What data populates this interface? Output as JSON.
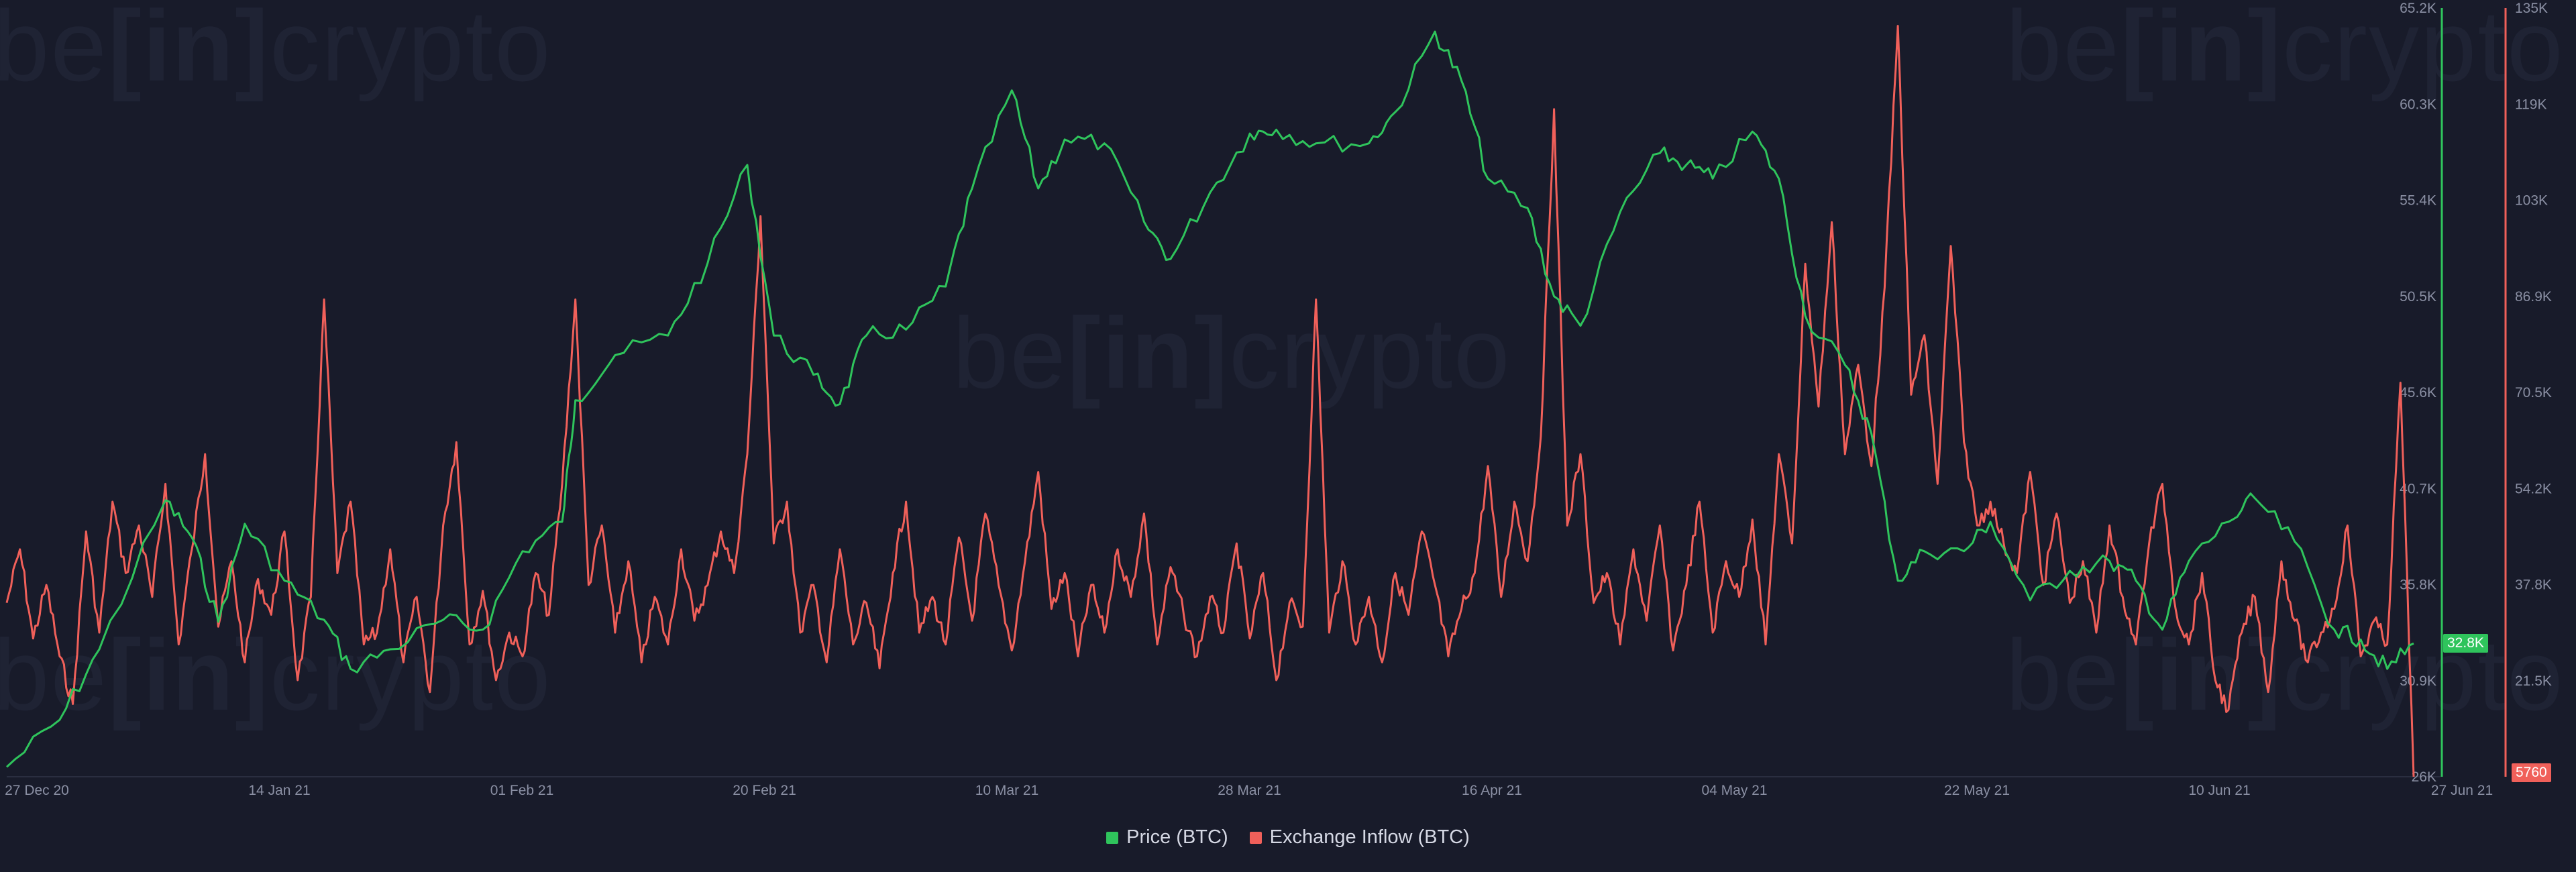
{
  "watermark": {
    "pre": "be",
    "mid": "[in]",
    "post": "crypto"
  },
  "colors": {
    "price": "#2fc45c",
    "inflow": "#f0605a",
    "grid": "#2a2e40",
    "axis_text": "#8a8fa3"
  },
  "legend": {
    "price_label": "Price (BTC)",
    "inflow_label": "Exchange Inflow (BTC)"
  },
  "badges": {
    "price_last": "32.8K",
    "inflow_last": "5760"
  },
  "chart_data": {
    "type": "line",
    "x_ticks": [
      "27 Dec 20",
      "14 Jan 21",
      "01 Feb 21",
      "20 Feb 21",
      "10 Mar 21",
      "28 Mar 21",
      "16 Apr 21",
      "04 May 21",
      "22 May 21",
      "10 Jun 21",
      "27 Jun 21"
    ],
    "x_range": [
      "2020-12-27",
      "2021-06-27"
    ],
    "y_left": {
      "ticks": [
        "26K",
        "30.9K",
        "35.8K",
        "40.7K",
        "45.6K",
        "50.5K",
        "55.4K",
        "60.3K",
        "65.2K"
      ],
      "range": [
        26000,
        65200
      ]
    },
    "y_right": {
      "ticks": [
        "5760",
        "21.5K",
        "37.8K",
        "54.2K",
        "70.5K",
        "86.9K",
        "103K",
        "119K",
        "135K"
      ],
      "range": [
        5760,
        135000
      ]
    },
    "grid": false,
    "legend_position": "bottom-center",
    "series": [
      {
        "name": "Price (BTC)",
        "axis": "left",
        "points": [
          [
            "2020-12-27",
            26500
          ],
          [
            "2020-12-31",
            28900
          ],
          [
            "2021-01-03",
            32500
          ],
          [
            "2021-01-08",
            40100
          ],
          [
            "2021-01-10",
            38200
          ],
          [
            "2021-01-12",
            33900
          ],
          [
            "2021-01-14",
            38900
          ],
          [
            "2021-01-17",
            36000
          ],
          [
            "2021-01-20",
            34000
          ],
          [
            "2021-01-22",
            31500
          ],
          [
            "2021-01-25",
            32500
          ],
          [
            "2021-01-29",
            34000
          ],
          [
            "2021-02-01",
            33500
          ],
          [
            "2021-02-04",
            37500
          ],
          [
            "2021-02-07",
            39000
          ],
          [
            "2021-02-08",
            45200
          ],
          [
            "2021-02-11",
            47500
          ],
          [
            "2021-02-15",
            48500
          ],
          [
            "2021-02-18",
            52200
          ],
          [
            "2021-02-21",
            57200
          ],
          [
            "2021-02-23",
            48500
          ],
          [
            "2021-02-26",
            46500
          ],
          [
            "2021-02-28",
            45000
          ],
          [
            "2021-03-02",
            48500
          ],
          [
            "2021-03-05",
            48800
          ],
          [
            "2021-03-08",
            51000
          ],
          [
            "2021-03-10",
            56000
          ],
          [
            "2021-03-13",
            61000
          ],
          [
            "2021-03-15",
            56000
          ],
          [
            "2021-03-17",
            58500
          ],
          [
            "2021-03-20",
            58300
          ],
          [
            "2021-03-23",
            54300
          ],
          [
            "2021-03-25",
            52400
          ],
          [
            "2021-03-28",
            55800
          ],
          [
            "2021-03-31",
            58800
          ],
          [
            "2021-04-02",
            59000
          ],
          [
            "2021-04-05",
            58300
          ],
          [
            "2021-04-09",
            58300
          ],
          [
            "2021-04-11",
            59900
          ],
          [
            "2021-04-14",
            64000
          ],
          [
            "2021-04-16",
            61500
          ],
          [
            "2021-04-18",
            56500
          ],
          [
            "2021-04-21",
            55000
          ],
          [
            "2021-04-23",
            50500
          ],
          [
            "2021-04-25",
            49000
          ],
          [
            "2021-04-28",
            54800
          ],
          [
            "2021-05-01",
            57800
          ],
          [
            "2021-05-03",
            57200
          ],
          [
            "2021-05-05",
            56500
          ],
          [
            "2021-05-08",
            58900
          ],
          [
            "2021-05-10",
            56500
          ],
          [
            "2021-05-12",
            49500
          ],
          [
            "2021-05-15",
            47000
          ],
          [
            "2021-05-17",
            43500
          ],
          [
            "2021-05-19",
            36000
          ],
          [
            "2021-05-21",
            37500
          ],
          [
            "2021-05-24",
            37500
          ],
          [
            "2021-05-26",
            39000
          ],
          [
            "2021-05-29",
            35000
          ],
          [
            "2021-06-01",
            36500
          ],
          [
            "2021-06-04",
            37000
          ],
          [
            "2021-06-06",
            36000
          ],
          [
            "2021-06-08",
            33500
          ],
          [
            "2021-06-10",
            37000
          ],
          [
            "2021-06-13",
            39000
          ],
          [
            "2021-06-15",
            40200
          ],
          [
            "2021-06-18",
            38000
          ],
          [
            "2021-06-21",
            33500
          ],
          [
            "2021-06-23",
            33000
          ],
          [
            "2021-06-25",
            31500
          ],
          [
            "2021-06-27",
            32800
          ]
        ]
      },
      {
        "name": "Exchange Inflow (BTC)",
        "axis": "right",
        "points": [
          [
            "2020-12-27",
            35000
          ],
          [
            "2020-12-28",
            44000
          ],
          [
            "2020-12-29",
            29000
          ],
          [
            "2020-12-30",
            38000
          ],
          [
            "2020-12-31",
            26000
          ],
          [
            "2021-01-01",
            18000
          ],
          [
            "2021-01-02",
            47000
          ],
          [
            "2021-01-03",
            30000
          ],
          [
            "2021-01-04",
            52000
          ],
          [
            "2021-01-05",
            40000
          ],
          [
            "2021-01-06",
            48000
          ],
          [
            "2021-01-07",
            36000
          ],
          [
            "2021-01-08",
            55000
          ],
          [
            "2021-01-09",
            28000
          ],
          [
            "2021-01-10",
            44000
          ],
          [
            "2021-01-11",
            60000
          ],
          [
            "2021-01-12",
            31000
          ],
          [
            "2021-01-13",
            42000
          ],
          [
            "2021-01-14",
            25000
          ],
          [
            "2021-01-15",
            39000
          ],
          [
            "2021-01-16",
            33000
          ],
          [
            "2021-01-17",
            47000
          ],
          [
            "2021-01-18",
            22000
          ],
          [
            "2021-01-19",
            36000
          ],
          [
            "2021-01-20",
            86000
          ],
          [
            "2021-01-21",
            40000
          ],
          [
            "2021-01-22",
            52000
          ],
          [
            "2021-01-23",
            28000
          ],
          [
            "2021-01-24",
            30000
          ],
          [
            "2021-01-25",
            44000
          ],
          [
            "2021-01-26",
            25000
          ],
          [
            "2021-01-27",
            36000
          ],
          [
            "2021-01-28",
            20000
          ],
          [
            "2021-01-29",
            48000
          ],
          [
            "2021-01-30",
            62000
          ],
          [
            "2021-01-31",
            28000
          ],
          [
            "2021-02-01",
            37000
          ],
          [
            "2021-02-02",
            22000
          ],
          [
            "2021-02-03",
            30000
          ],
          [
            "2021-02-04",
            26000
          ],
          [
            "2021-02-05",
            40000
          ],
          [
            "2021-02-06",
            33000
          ],
          [
            "2021-02-07",
            55000
          ],
          [
            "2021-02-08",
            86000
          ],
          [
            "2021-02-09",
            38000
          ],
          [
            "2021-02-10",
            48000
          ],
          [
            "2021-02-11",
            30000
          ],
          [
            "2021-02-12",
            42000
          ],
          [
            "2021-02-13",
            25000
          ],
          [
            "2021-02-14",
            36000
          ],
          [
            "2021-02-15",
            28000
          ],
          [
            "2021-02-16",
            44000
          ],
          [
            "2021-02-17",
            32000
          ],
          [
            "2021-02-18",
            38000
          ],
          [
            "2021-02-19",
            47000
          ],
          [
            "2021-02-20",
            40000
          ],
          [
            "2021-02-21",
            60000
          ],
          [
            "2021-02-22",
            100000
          ],
          [
            "2021-02-23",
            45000
          ],
          [
            "2021-02-24",
            52000
          ],
          [
            "2021-02-25",
            30000
          ],
          [
            "2021-02-26",
            38000
          ],
          [
            "2021-02-27",
            25000
          ],
          [
            "2021-02-28",
            44000
          ],
          [
            "2021-03-01",
            28000
          ],
          [
            "2021-03-02",
            35000
          ],
          [
            "2021-03-03",
            24000
          ],
          [
            "2021-03-04",
            40000
          ],
          [
            "2021-03-05",
            52000
          ],
          [
            "2021-03-06",
            30000
          ],
          [
            "2021-03-07",
            36000
          ],
          [
            "2021-03-08",
            28000
          ],
          [
            "2021-03-09",
            46000
          ],
          [
            "2021-03-10",
            32000
          ],
          [
            "2021-03-11",
            50000
          ],
          [
            "2021-03-12",
            38000
          ],
          [
            "2021-03-13",
            27000
          ],
          [
            "2021-03-14",
            42000
          ],
          [
            "2021-03-15",
            57000
          ],
          [
            "2021-03-16",
            34000
          ],
          [
            "2021-03-17",
            40000
          ],
          [
            "2021-03-18",
            26000
          ],
          [
            "2021-03-19",
            38000
          ],
          [
            "2021-03-20",
            30000
          ],
          [
            "2021-03-21",
            44000
          ],
          [
            "2021-03-22",
            36000
          ],
          [
            "2021-03-23",
            50000
          ],
          [
            "2021-03-24",
            28000
          ],
          [
            "2021-03-25",
            41000
          ],
          [
            "2021-03-26",
            33000
          ],
          [
            "2021-03-27",
            26000
          ],
          [
            "2021-03-28",
            36000
          ],
          [
            "2021-03-29",
            30000
          ],
          [
            "2021-03-30",
            45000
          ],
          [
            "2021-03-31",
            29000
          ],
          [
            "2021-04-01",
            40000
          ],
          [
            "2021-04-02",
            22000
          ],
          [
            "2021-04-03",
            35000
          ],
          [
            "2021-04-04",
            31000
          ],
          [
            "2021-04-05",
            86000
          ],
          [
            "2021-04-06",
            30000
          ],
          [
            "2021-04-07",
            42000
          ],
          [
            "2021-04-08",
            28000
          ],
          [
            "2021-04-09",
            36000
          ],
          [
            "2021-04-10",
            25000
          ],
          [
            "2021-04-11",
            40000
          ],
          [
            "2021-04-12",
            33000
          ],
          [
            "2021-04-13",
            47000
          ],
          [
            "2021-04-14",
            38000
          ],
          [
            "2021-04-15",
            26000
          ],
          [
            "2021-04-16",
            34000
          ],
          [
            "2021-04-17",
            40000
          ],
          [
            "2021-04-18",
            58000
          ],
          [
            "2021-04-19",
            36000
          ],
          [
            "2021-04-20",
            52000
          ],
          [
            "2021-04-21",
            42000
          ],
          [
            "2021-04-22",
            63000
          ],
          [
            "2021-04-23",
            118000
          ],
          [
            "2021-04-24",
            48000
          ],
          [
            "2021-04-25",
            60000
          ],
          [
            "2021-04-26",
            35000
          ],
          [
            "2021-04-27",
            40000
          ],
          [
            "2021-04-28",
            28000
          ],
          [
            "2021-04-29",
            44000
          ],
          [
            "2021-04-30",
            32000
          ],
          [
            "2021-05-01",
            48000
          ],
          [
            "2021-05-02",
            27000
          ],
          [
            "2021-05-03",
            38000
          ],
          [
            "2021-05-04",
            52000
          ],
          [
            "2021-05-05",
            30000
          ],
          [
            "2021-05-06",
            42000
          ],
          [
            "2021-05-07",
            36000
          ],
          [
            "2021-05-08",
            49000
          ],
          [
            "2021-05-09",
            28000
          ],
          [
            "2021-05-10",
            60000
          ],
          [
            "2021-05-11",
            45000
          ],
          [
            "2021-05-12",
            92000
          ],
          [
            "2021-05-13",
            68000
          ],
          [
            "2021-05-14",
            99000
          ],
          [
            "2021-05-15",
            60000
          ],
          [
            "2021-05-16",
            75000
          ],
          [
            "2021-05-17",
            58000
          ],
          [
            "2021-05-18",
            88000
          ],
          [
            "2021-05-19",
            132000
          ],
          [
            "2021-05-20",
            70000
          ],
          [
            "2021-05-21",
            80000
          ],
          [
            "2021-05-22",
            55000
          ],
          [
            "2021-05-23",
            95000
          ],
          [
            "2021-05-24",
            62000
          ],
          [
            "2021-05-25",
            48000
          ],
          [
            "2021-05-26",
            52000
          ],
          [
            "2021-05-27",
            45000
          ],
          [
            "2021-05-28",
            40000
          ],
          [
            "2021-05-29",
            57000
          ],
          [
            "2021-05-30",
            38000
          ],
          [
            "2021-05-31",
            50000
          ],
          [
            "2021-06-01",
            35000
          ],
          [
            "2021-06-02",
            42000
          ],
          [
            "2021-06-03",
            30000
          ],
          [
            "2021-06-04",
            48000
          ],
          [
            "2021-06-05",
            36000
          ],
          [
            "2021-06-06",
            28000
          ],
          [
            "2021-06-07",
            45000
          ],
          [
            "2021-06-08",
            55000
          ],
          [
            "2021-06-09",
            34000
          ],
          [
            "2021-06-10",
            28000
          ],
          [
            "2021-06-11",
            40000
          ],
          [
            "2021-06-12",
            22000
          ],
          [
            "2021-06-13",
            17000
          ],
          [
            "2021-06-14",
            30000
          ],
          [
            "2021-06-15",
            36000
          ],
          [
            "2021-06-16",
            20000
          ],
          [
            "2021-06-17",
            42000
          ],
          [
            "2021-06-18",
            32000
          ],
          [
            "2021-06-19",
            25000
          ],
          [
            "2021-06-20",
            30000
          ],
          [
            "2021-06-21",
            34000
          ],
          [
            "2021-06-22",
            48000
          ],
          [
            "2021-06-23",
            26000
          ],
          [
            "2021-06-24",
            32000
          ],
          [
            "2021-06-25",
            28000
          ],
          [
            "2021-06-26",
            72000
          ],
          [
            "2021-06-27",
            5760
          ]
        ]
      }
    ]
  }
}
